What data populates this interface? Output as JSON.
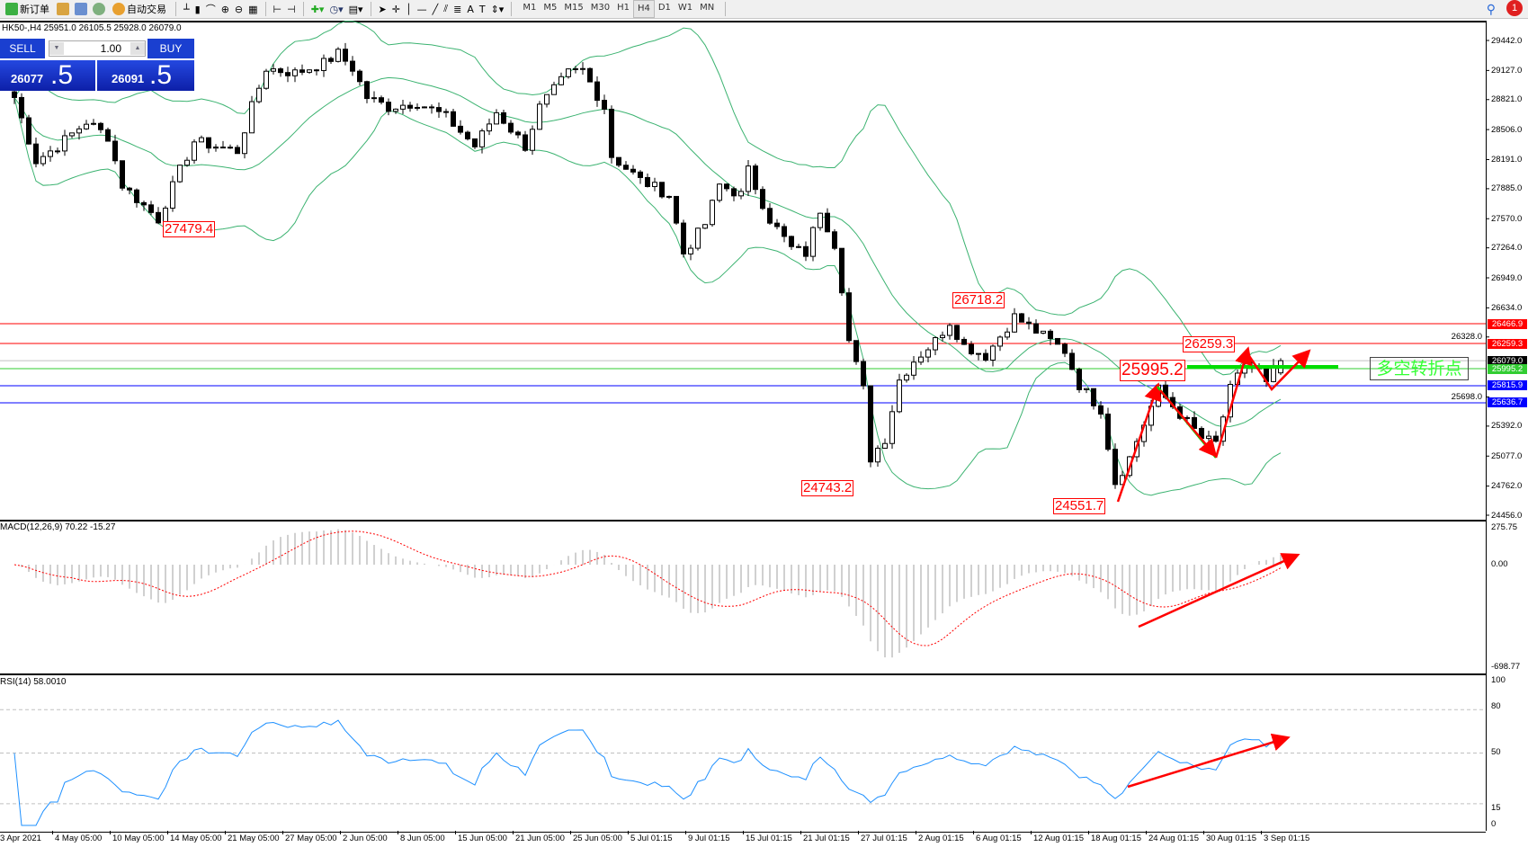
{
  "toolbar": {
    "new_order_label": "新订单",
    "auto_trading_label": "自动交易",
    "timeframes": [
      "M1",
      "M5",
      "M15",
      "M30",
      "H1",
      "H4",
      "D1",
      "W1",
      "MN"
    ],
    "active_timeframe": "H4",
    "alert_count": "1"
  },
  "chart": {
    "symbol_info": "HK50-,H4  25951.0 26105.5 25928.0 26079.0",
    "last_bar": {
      "open": 25951.0,
      "high": 26105.5,
      "low": 25928.0,
      "close": 26079.0
    }
  },
  "one_click": {
    "sell_label": "SELL",
    "buy_label": "BUY",
    "lot": "1.00",
    "sell_main": "26077",
    "sell_frac": ".5",
    "buy_main": "26091",
    "buy_frac": ".5"
  },
  "price_axis": {
    "max": 29442.0,
    "min": 24456.0,
    "ticks": [
      "29442.0",
      "29127.0",
      "28821.0",
      "28506.0",
      "28191.0",
      "27885.0",
      "27570.0",
      "27264.0",
      "26949.0",
      "26634.0",
      "26328.0",
      "25698.0",
      "25392.0",
      "25077.0",
      "24762.0",
      "24456.0"
    ]
  },
  "levels": [
    {
      "price": 26466.9,
      "label": "26466.9",
      "color": "#ff0000"
    },
    {
      "price": 26259.3,
      "label": "26259.3",
      "color": "#ff0000"
    },
    {
      "price": 26079.0,
      "label": "26079.0",
      "color": "#000000",
      "line": "#c0c0c0"
    },
    {
      "price": 25995.2,
      "label": "25995.2",
      "color": "#32cd32"
    },
    {
      "price": 25815.9,
      "label": "25815.9",
      "color": "#0000ff"
    },
    {
      "price": 25636.7,
      "label": "25636.7",
      "color": "#0000ff"
    }
  ],
  "annotations": [
    "27479.4",
    "26718.2",
    "24743.2",
    "24551.7",
    "26259.3",
    "25995.2"
  ],
  "turning_point_text": "多空转折点",
  "close_path": [
    [
      0,
      28844
    ],
    [
      3,
      28179
    ],
    [
      6,
      28332
    ],
    [
      10,
      28588
    ],
    [
      13,
      28435
    ],
    [
      15,
      27923
    ],
    [
      20,
      27565
    ],
    [
      23,
      28076
    ],
    [
      25,
      28383
    ],
    [
      31,
      28281
    ],
    [
      33,
      28741
    ],
    [
      35,
      29151
    ],
    [
      39,
      29100
    ],
    [
      43,
      29202
    ],
    [
      45,
      29304
    ],
    [
      47,
      29151
    ],
    [
      49,
      28844
    ],
    [
      52,
      28741
    ],
    [
      56,
      28793
    ],
    [
      60,
      28639
    ],
    [
      64,
      28332
    ],
    [
      67,
      28690
    ],
    [
      71,
      28332
    ],
    [
      73,
      28741
    ],
    [
      77,
      29100
    ],
    [
      79,
      29130
    ],
    [
      82,
      28741
    ],
    [
      83,
      28230
    ],
    [
      87,
      27974
    ],
    [
      91,
      27821
    ],
    [
      93,
      27207
    ],
    [
      96,
      27514
    ],
    [
      98,
      27923
    ],
    [
      101,
      27821
    ],
    [
      102,
      28076
    ],
    [
      105,
      27565
    ],
    [
      108,
      27258
    ],
    [
      110,
      27207
    ],
    [
      112,
      27667
    ],
    [
      114,
      27309
    ],
    [
      115,
      26849
    ],
    [
      116,
      26286
    ],
    [
      118,
      25774
    ],
    [
      119,
      25058
    ],
    [
      121,
      25263
    ],
    [
      123,
      25877
    ],
    [
      125,
      26081
    ],
    [
      128,
      26286
    ],
    [
      130,
      26490
    ],
    [
      132,
      26235
    ],
    [
      135,
      26132
    ],
    [
      137,
      26337
    ],
    [
      139,
      26541
    ],
    [
      142,
      26388
    ],
    [
      146,
      26184
    ],
    [
      148,
      25825
    ],
    [
      151,
      25570
    ],
    [
      153,
      24802
    ],
    [
      155,
      25058
    ],
    [
      157,
      25416
    ],
    [
      159,
      25774
    ],
    [
      162,
      25519
    ],
    [
      165,
      25263
    ],
    [
      167,
      25212
    ],
    [
      169,
      25774
    ],
    [
      171,
      26030
    ],
    [
      173,
      25979
    ],
    [
      174,
      25825
    ],
    [
      175,
      25979
    ],
    [
      176,
      26079
    ]
  ],
  "colors": {
    "bollinger": "#3cb371",
    "macd_hist": "#c0c0c0",
    "macd_signal": "#ff0000",
    "rsi": "#1e90ff",
    "arrow": "#ff0000",
    "green_line": "#00dd00"
  },
  "macd": {
    "label": "MACD(12,26,9) 70.22 -15.27",
    "axis_max": "275.75",
    "axis_zero": "0.00",
    "axis_min": "-698.77"
  },
  "rsi": {
    "label": "RSI(14) 58.0010",
    "axis": [
      "100",
      "80",
      "50",
      "15",
      "0"
    ]
  },
  "time_axis": [
    "3 Apr 2021",
    "4 May 05:00",
    "10 May 05:00",
    "14 May 05:00",
    "21 May 05:00",
    "27 May 05:00",
    "2 Jun 05:00",
    "8 Jun 05:00",
    "15 Jun 05:00",
    "21 Jun 05:00",
    "25 Jun 05:00",
    "5 Jul 01:15",
    "9 Jul 01:15",
    "15 Jul 01:15",
    "21 Jul 01:15",
    "27 Jul 01:15",
    "2 Aug 01:15",
    "6 Aug 01:15",
    "12 Aug 01:15",
    "18 Aug 01:15",
    "24 Aug 01:15",
    "30 Aug 01:15",
    "3 Sep 01:15"
  ]
}
